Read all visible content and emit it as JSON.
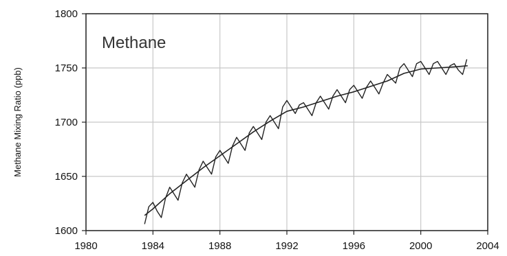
{
  "chart_data": {
    "type": "line",
    "title": "Methane",
    "xlabel": "",
    "ylabel": "Methane Mixing Ratio (ppb)",
    "xlim": [
      1980,
      2004
    ],
    "ylim": [
      1600,
      1800
    ],
    "xticks": [
      "1980",
      "1984",
      "1988",
      "1992",
      "1996",
      "2000",
      "2004"
    ],
    "yticks": [
      "1600",
      "1650",
      "1700",
      "1750",
      "1800"
    ],
    "grid": true,
    "series": [
      {
        "style": "monthly",
        "x": [
          1983.5,
          1983.75,
          1984.0,
          1984.25,
          1984.5,
          1984.75,
          1985.0,
          1985.25,
          1985.5,
          1985.75,
          1986.0,
          1986.25,
          1986.5,
          1986.75,
          1987.0,
          1987.25,
          1987.5,
          1987.75,
          1988.0,
          1988.25,
          1988.5,
          1988.75,
          1989.0,
          1989.25,
          1989.5,
          1989.75,
          1990.0,
          1990.25,
          1990.5,
          1990.75,
          1991.0,
          1991.25,
          1991.5,
          1991.75,
          1992.0,
          1992.25,
          1992.5,
          1992.75,
          1993.0,
          1993.25,
          1993.5,
          1993.75,
          1994.0,
          1994.25,
          1994.5,
          1994.75,
          1995.0,
          1995.25,
          1995.5,
          1995.75,
          1996.0,
          1996.25,
          1996.5,
          1996.75,
          1997.0,
          1997.25,
          1997.5,
          1997.75,
          1998.0,
          1998.25,
          1998.5,
          1998.75,
          1999.0,
          1999.25,
          1999.5,
          1999.75,
          2000.0,
          2000.25,
          2000.5,
          2000.75,
          2001.0,
          2001.25,
          2001.5,
          2001.75,
          2002.0,
          2002.25,
          2002.5,
          2002.75
        ],
        "y": [
          1606,
          1622,
          1626,
          1618,
          1612,
          1630,
          1640,
          1634,
          1628,
          1644,
          1652,
          1646,
          1640,
          1656,
          1664,
          1658,
          1652,
          1668,
          1674,
          1668,
          1662,
          1678,
          1686,
          1680,
          1674,
          1690,
          1696,
          1690,
          1684,
          1700,
          1706,
          1700,
          1694,
          1714,
          1720,
          1714,
          1708,
          1716,
          1718,
          1712,
          1706,
          1718,
          1724,
          1718,
          1712,
          1724,
          1730,
          1724,
          1718,
          1730,
          1734,
          1728,
          1722,
          1732,
          1738,
          1732,
          1726,
          1736,
          1744,
          1740,
          1736,
          1750,
          1754,
          1748,
          1742,
          1754,
          1756,
          1750,
          1744,
          1754,
          1756,
          1750,
          1744,
          1752,
          1754,
          1748,
          1744,
          1758
        ]
      },
      {
        "style": "trend",
        "x": [
          1983.5,
          1984.0,
          1985.0,
          1986.0,
          1987.0,
          1988.0,
          1989.0,
          1990.0,
          1991.0,
          1992.0,
          1993.0,
          1994.0,
          1995.0,
          1996.0,
          1997.0,
          1998.0,
          1999.0,
          2000.0,
          2001.0,
          2002.0,
          2002.8
        ],
        "y": [
          1614,
          1620,
          1634,
          1646,
          1658,
          1669,
          1680,
          1691,
          1701,
          1710,
          1714,
          1719,
          1724,
          1728,
          1733,
          1738,
          1745,
          1749,
          1750,
          1751,
          1752
        ]
      }
    ]
  }
}
